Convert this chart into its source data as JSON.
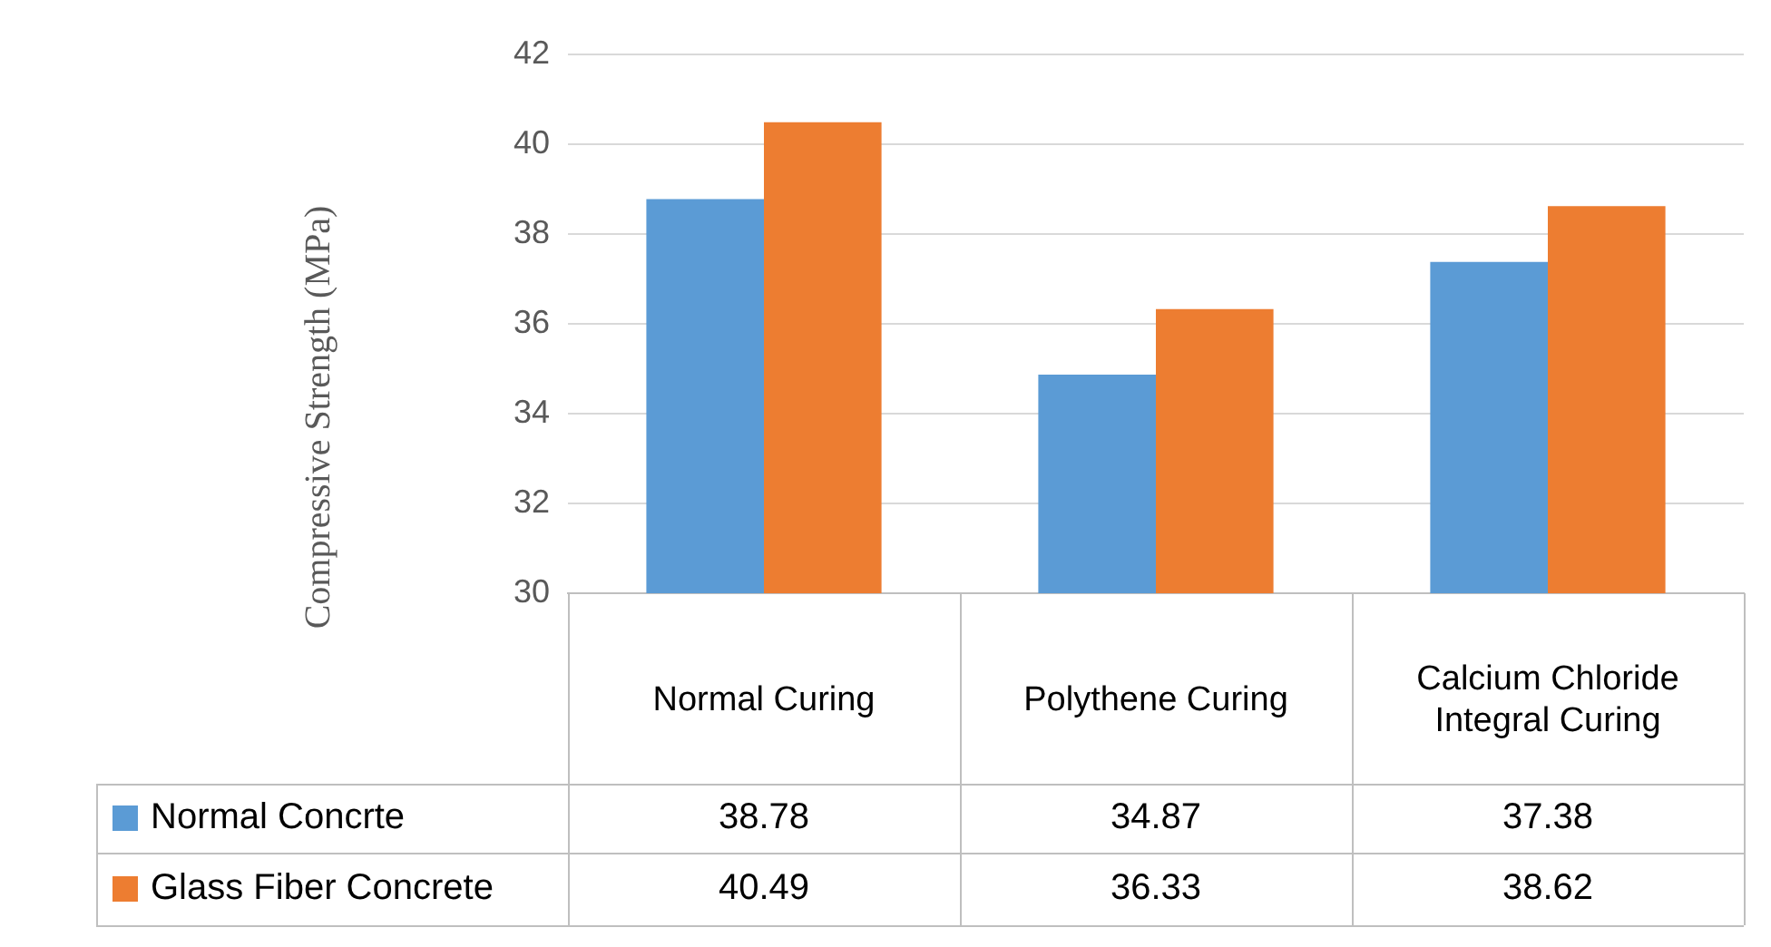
{
  "chart_data": {
    "type": "bar",
    "ylabel": "Compressive Strength (MPa)",
    "categories": [
      "Normal Curing",
      "Polythene Curing",
      "Calcium Chloride Integral Curing"
    ],
    "series": [
      {
        "name": "Normal Concrte",
        "color": "#5b9bd5",
        "values": [
          38.78,
          34.87,
          37.38
        ]
      },
      {
        "name": "Glass Fiber Concrete",
        "color": "#ed7d31",
        "values": [
          40.49,
          36.33,
          38.62
        ]
      }
    ],
    "ylim": [
      30,
      42
    ],
    "yticks": [
      30,
      32,
      34,
      36,
      38,
      40,
      42
    ],
    "grid": "y",
    "legend": "bottom",
    "data_labels": true
  }
}
